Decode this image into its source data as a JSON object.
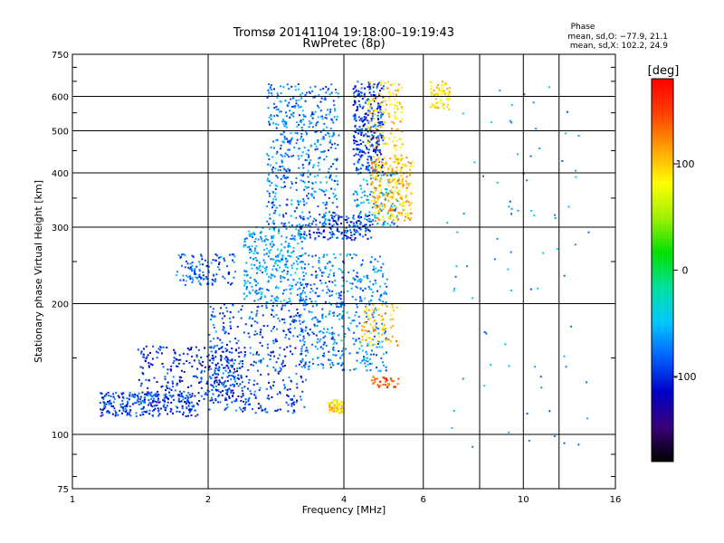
{
  "chart_data": {
    "type": "scatter",
    "title": "Tromsø 20141104 19:18:00–19:19:43",
    "subtitle": "RwPretec (8p)",
    "xlabel": "Frequency [MHz]",
    "ylabel": "Stationary phase Virtual Height [km]",
    "x_scale": "log",
    "y_scale": "log",
    "xlim": [
      1,
      16
    ],
    "ylim": [
      75,
      750
    ],
    "x_ticks": [
      1,
      2,
      4,
      6,
      10,
      16
    ],
    "y_ticks": [
      75,
      100,
      200,
      300,
      400,
      500,
      600,
      750
    ],
    "grid": true,
    "stats": {
      "heading": "Phase",
      "line_o": "mean, sd,O: −77.9, 21.1",
      "line_x": "mean, sd,X: 102.2, 24.9"
    },
    "colorbar": {
      "label": "[deg]",
      "range": [
        -180,
        180
      ],
      "ticks": [
        100,
        0,
        -100
      ],
      "colormap": [
        "#000000",
        "#3a007a",
        "#0000c8",
        "#0060ff",
        "#00c8ff",
        "#00e0a0",
        "#00e000",
        "#a0f000",
        "#ffff00",
        "#ffa000",
        "#ff4000",
        "#ff0000"
      ]
    },
    "series": [
      {
        "description": "echo clusters (frequency MHz, virtual height km, phase deg)",
        "clusters": [
          {
            "x": [
              1.15,
              1.9
            ],
            "y": [
              110,
              125
            ],
            "phase": -95,
            "n": 260
          },
          {
            "x": [
              1.4,
              2.4
            ],
            "y": [
              118,
              160
            ],
            "phase": -100,
            "n": 280
          },
          {
            "x": [
              2.0,
              3.3
            ],
            "y": [
              112,
              200
            ],
            "phase": -90,
            "n": 420
          },
          {
            "x": [
              1.7,
              2.3
            ],
            "y": [
              220,
              260
            ],
            "phase": -80,
            "n": 120
          },
          {
            "x": [
              2.4,
              3.3
            ],
            "y": [
              200,
              300
            ],
            "phase": -60,
            "n": 320
          },
          {
            "x": [
              2.7,
              3.9
            ],
            "y": [
              300,
              640
            ],
            "phase": -75,
            "n": 520
          },
          {
            "x": [
              3.2,
              4.6
            ],
            "y": [
              280,
              320
            ],
            "phase": -95,
            "n": 160
          },
          {
            "x": [
              3.2,
              4.0
            ],
            "y": [
              140,
              260
            ],
            "phase": -80,
            "n": 240
          },
          {
            "x": [
              3.7,
              4.0
            ],
            "y": [
              112,
              120
            ],
            "phase": 90,
            "n": 70
          },
          {
            "x": [
              3.9,
              5.0
            ],
            "y": [
              140,
              260
            ],
            "phase": -70,
            "n": 220
          },
          {
            "x": [
              4.2,
              4.9
            ],
            "y": [
              400,
              650
            ],
            "phase": -95,
            "n": 320
          },
          {
            "x": [
              4.2,
              5.3
            ],
            "y": [
              300,
              400
            ],
            "phase": -60,
            "n": 120
          },
          {
            "x": [
              4.6,
              5.7
            ],
            "y": [
              310,
              440
            ],
            "phase": 105,
            "n": 260
          },
          {
            "x": [
              4.5,
              5.4
            ],
            "y": [
              450,
              650
            ],
            "phase": 100,
            "n": 120
          },
          {
            "x": [
              4.6,
              5.3
            ],
            "y": [
              128,
              136
            ],
            "phase": 140,
            "n": 40
          },
          {
            "x": [
              4.3,
              5.3
            ],
            "y": [
              160,
              200
            ],
            "phase": 110,
            "n": 80
          },
          {
            "x": [
              6.2,
              6.9
            ],
            "y": [
              560,
              650
            ],
            "phase": 90,
            "n": 70
          },
          {
            "x": [
              6.6,
              14.0
            ],
            "y": [
              90,
              640
            ],
            "phase": -60,
            "n": 80
          }
        ]
      }
    ]
  }
}
